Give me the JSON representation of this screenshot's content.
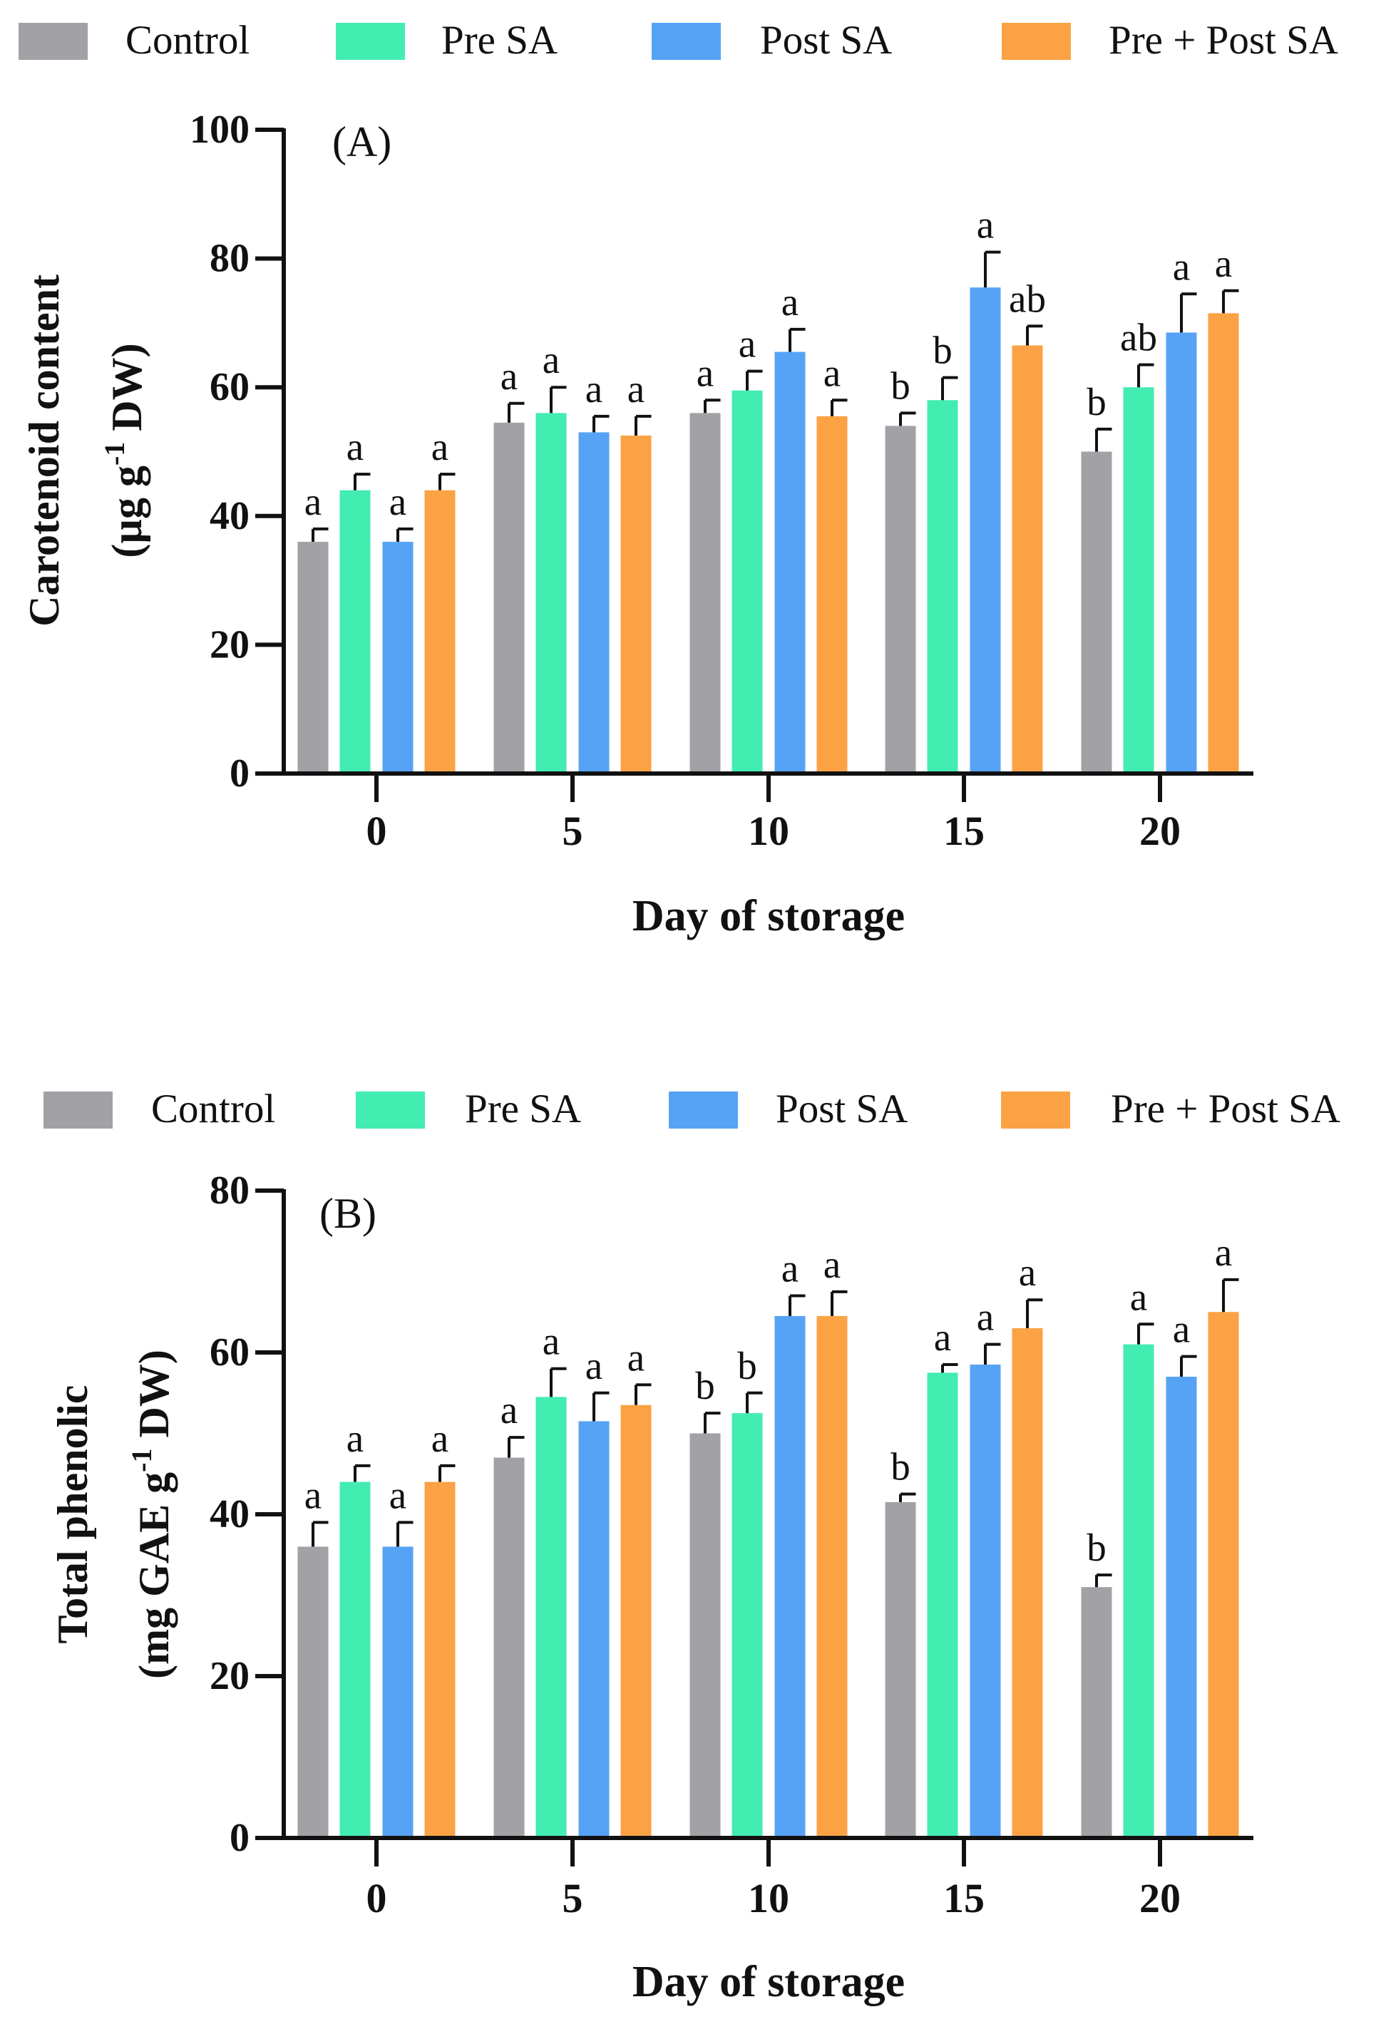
{
  "colors": {
    "Control": "#a2a1a6",
    "Pre SA": "#43ecb1",
    "Post SA": "#56a3f5",
    "Pre + Post SA": "#fba245",
    "axis": "#111111"
  },
  "chart_data": [
    {
      "type": "bar",
      "panel_label": "(A)",
      "categories": [
        "0",
        "5",
        "10",
        "15",
        "20"
      ],
      "legend": [
        "Control",
        "Pre SA",
        "Post SA",
        "Pre + Post SA"
      ],
      "legend_position": "top",
      "xlabel": "Day of storage",
      "ylabel_line1": "Carotenoid content",
      "ylabel_line2_parts": [
        "(µg g",
        "-1",
        " DW)"
      ],
      "ylim": [
        0,
        100
      ],
      "yticks": [
        0,
        20,
        40,
        60,
        80,
        100
      ],
      "series": [
        {
          "name": "Control",
          "values": [
            36,
            54.5,
            56,
            54,
            50
          ],
          "errors": [
            2,
            3,
            2,
            2,
            3.5
          ],
          "letters": [
            "a",
            "a",
            "a",
            "b",
            "b"
          ]
        },
        {
          "name": "Pre SA",
          "values": [
            44,
            56,
            59.5,
            58,
            60
          ],
          "errors": [
            2.5,
            4,
            3,
            3.5,
            3.5
          ],
          "letters": [
            "a",
            "a",
            "a",
            "b",
            "ab"
          ]
        },
        {
          "name": "Post SA",
          "values": [
            36,
            53,
            65.5,
            75.5,
            68.5
          ],
          "errors": [
            2,
            2.5,
            3.5,
            5.5,
            6
          ],
          "letters": [
            "a",
            "a",
            "a",
            "a",
            "a"
          ]
        },
        {
          "name": "Pre + Post SA",
          "values": [
            44,
            52.5,
            55.5,
            66.5,
            71.5
          ],
          "errors": [
            2.5,
            3,
            2.5,
            3,
            3.5
          ],
          "letters": [
            "a",
            "a",
            "a",
            "ab",
            "a"
          ]
        }
      ]
    },
    {
      "type": "bar",
      "panel_label": "(B)",
      "categories": [
        "0",
        "5",
        "10",
        "15",
        "20"
      ],
      "legend": [
        "Control",
        "Pre SA",
        "Post SA",
        "Pre + Post SA"
      ],
      "legend_position": "top",
      "xlabel": "Day of storage",
      "ylabel_line1": "Total phenolic",
      "ylabel_line2_parts": [
        "(mg GAE g",
        "-1",
        " DW)"
      ],
      "ylim": [
        0,
        80
      ],
      "yticks": [
        0,
        20,
        40,
        60,
        80
      ],
      "series": [
        {
          "name": "Control",
          "values": [
            36,
            47,
            50,
            41.5,
            31
          ],
          "errors": [
            3,
            2.5,
            2.5,
            1,
            1.5
          ],
          "letters": [
            "a",
            "a",
            "b",
            "b",
            "b"
          ]
        },
        {
          "name": "Pre SA",
          "values": [
            44,
            54.5,
            52.5,
            57.5,
            61
          ],
          "errors": [
            2,
            3.5,
            2.5,
            1,
            2.5
          ],
          "letters": [
            "a",
            "a",
            "b",
            "a",
            "a"
          ]
        },
        {
          "name": "Post SA",
          "values": [
            36,
            51.5,
            64.5,
            58.5,
            57
          ],
          "errors": [
            3,
            3.5,
            2.5,
            2.5,
            2.5
          ],
          "letters": [
            "a",
            "a",
            "a",
            "a",
            "a"
          ]
        },
        {
          "name": "Pre + Post SA",
          "values": [
            44,
            53.5,
            64.5,
            63,
            65
          ],
          "errors": [
            2,
            2.5,
            3,
            3.5,
            4
          ],
          "letters": [
            "a",
            "a",
            "a",
            "a",
            "a"
          ]
        }
      ]
    }
  ]
}
